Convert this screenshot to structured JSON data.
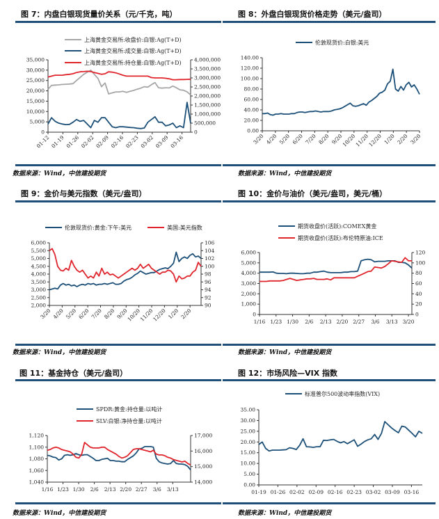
{
  "colors": {
    "blue": "#1b4f78",
    "red": "#e0242c",
    "gray": "#a6a6a6",
    "rule": "#1f4e79"
  },
  "source": "数据来源：Wind，中信建投期货",
  "chart_data": [
    {
      "type": "line",
      "title": "图 7：内盘白银现货量价关系（元/千克，吨）",
      "xticks": [
        "01-12",
        "01-19",
        "01-26",
        "02-02",
        "02-09",
        "02-16",
        "02-23",
        "03-02",
        "03-09",
        "03-16"
      ],
      "ylim": [
        0,
        35000
      ],
      "yticks": [
        0,
        5000,
        10000,
        15000,
        20000,
        25000,
        30000,
        35000
      ],
      "ytick_labels": [
        "0",
        "5,000",
        "10,000",
        "15,000",
        "20,000",
        "25,000",
        "30,000",
        "35,000"
      ],
      "y2lim": [
        0,
        4000000
      ],
      "y2ticks": [
        0,
        500000,
        1000000,
        1500000,
        2000000,
        2500000,
        3000000,
        3500000,
        4000000
      ],
      "y2tick_labels": [
        "0",
        "500,000",
        "1,000,000",
        "1,500,000",
        "2,000,000",
        "2,500,000",
        "3,000,000",
        "3,500,000",
        "4,000,000"
      ],
      "series": [
        {
          "name": "上海黄金交易所:收盘价:白银:Ag(T+D)",
          "color": "#a6a6a6",
          "axis": "left",
          "values": [
            20800,
            22600,
            22800,
            22900,
            23100,
            23200,
            23300,
            23500,
            25000,
            26500,
            28000,
            29000,
            30000,
            28000,
            26000,
            22000,
            23800,
            18500,
            19000,
            19500,
            19500,
            19800,
            19300,
            19800,
            20200,
            20800,
            21300,
            22000,
            21800,
            23000,
            24000,
            21500,
            21300,
            21500,
            21400,
            22300,
            21500,
            20500,
            20300,
            19500,
            18000
          ]
        },
        {
          "name": "上海黄金交易所:成交量:白银:Ag(T+D)",
          "color": "#1b4f78",
          "axis": "right",
          "values": [
            450000,
            800000,
            600000,
            500000,
            450000,
            420000,
            430000,
            550000,
            700000,
            600000,
            650000,
            450000,
            250000,
            650000,
            550000,
            800000,
            800000,
            550000,
            300000,
            250000,
            300000,
            300000,
            280000,
            260000,
            250000,
            220000,
            200000,
            230000,
            550000,
            700000,
            850000,
            550000,
            550000,
            350000,
            400000,
            500000,
            250000,
            350000,
            250000,
            1650000,
            500000
          ]
        },
        {
          "name": "上海黄金交易所:持仓量:白银:Ag(T+D)",
          "color": "#e0242c",
          "axis": "right",
          "values": [
            3050000,
            3100000,
            3150000,
            3150000,
            3150000,
            3180000,
            3200000,
            3230000,
            3300000,
            3340000,
            3350000,
            3370000,
            3350000,
            3300000,
            3250000,
            3200000,
            3230000,
            3340000,
            3320000,
            3280000,
            3220000,
            3150000,
            3100000,
            3100000,
            3100000,
            3100000,
            3100000,
            3100000,
            3100000,
            3020000,
            3000000,
            3000000,
            3000000,
            2980000,
            2950000,
            2900000,
            2900000,
            2910000,
            2910000,
            2920000,
            2930000
          ]
        }
      ]
    },
    {
      "type": "line",
      "title": "图 8：外盘白银现货价格走势（美元/盎司）",
      "xticks": [
        "3/20",
        "4/20",
        "5/20",
        "6/20",
        "7/20",
        "8/20",
        "9/20",
        "10/20",
        "11/20",
        "12/20",
        "1/20",
        "2/20",
        "3/20"
      ],
      "ylim": [
        0,
        140
      ],
      "yticks": [
        0,
        20,
        40,
        60,
        80,
        100,
        120,
        140
      ],
      "ytick_labels": [
        "0.00",
        "20.00",
        "40.00",
        "60.00",
        "80.00",
        "100.00",
        "120.00",
        "140.00"
      ],
      "series": [
        {
          "name": "伦敦现货价:白银:美元",
          "color": "#1b4f78",
          "axis": "left",
          "values": [
            33,
            33,
            34,
            31,
            30,
            32,
            32,
            33,
            32,
            32,
            32,
            33,
            33,
            35,
            36,
            36,
            35,
            36,
            37,
            37,
            38,
            37,
            36,
            37,
            37,
            37,
            38,
            40,
            41,
            42,
            44,
            47,
            50,
            53,
            48,
            47,
            48,
            50,
            52,
            49,
            55,
            58,
            62,
            66,
            72,
            74,
            78,
            90,
            95,
            118,
            80,
            76,
            85,
            78,
            88,
            93,
            84,
            88,
            80,
            70
          ]
        }
      ]
    },
    {
      "type": "line",
      "title": "图 9：金价与美元指数（美元/盎司）",
      "xticks": [
        "3/20",
        "4/20",
        "5/20",
        "6/20",
        "7/20",
        "8/20",
        "9/20",
        "10/20",
        "11/20",
        "12/20",
        "1/20",
        "2/20"
      ],
      "ylim": [
        2000,
        6000
      ],
      "yticks": [
        2000,
        2500,
        3000,
        3500,
        4000,
        4500,
        5000,
        5500,
        6000
      ],
      "ytick_labels": [
        "2,000",
        "2,500",
        "3,000",
        "3,500",
        "4,000",
        "4,500",
        "5,000",
        "5,500",
        "6,000"
      ],
      "y2lim": [
        90,
        106
      ],
      "y2ticks": [
        90,
        92,
        94,
        96,
        98,
        100,
        102,
        104,
        106
      ],
      "y2tick_labels": [
        "90",
        "92",
        "94",
        "96",
        "98",
        "100",
        "102",
        "104",
        "106"
      ],
      "series": [
        {
          "name": "伦敦现货价:黄金:下午:美元",
          "color": "#1b4f78",
          "axis": "left",
          "values": [
            3000,
            3050,
            3100,
            3050,
            3300,
            3400,
            3300,
            3350,
            3250,
            3300,
            3200,
            3300,
            3350,
            3300,
            3400,
            3350,
            3400,
            3300,
            3350,
            3350,
            3400,
            3350,
            3400,
            3450,
            3350,
            3350,
            3400,
            3550,
            3650,
            3700,
            3800,
            3950,
            4050,
            4200,
            4100,
            4000,
            4050,
            4100,
            4100,
            4200,
            4300,
            4350,
            4400,
            4350,
            4500,
            4700,
            5400,
            4800,
            5000,
            5100,
            5000,
            5200,
            5300,
            5100,
            5150,
            5000
          ]
        },
        {
          "name": "美国:美元指数",
          "color": "#e0242c",
          "axis": "right",
          "values": [
            104,
            104.5,
            103,
            100,
            99,
            98.8,
            99.5,
            99,
            101.5,
            100,
            99,
            98.5,
            99,
            98,
            97,
            97.5,
            97,
            98.5,
            97.5,
            99.5,
            98,
            98.5,
            97.8,
            98,
            97.5,
            97,
            97.5,
            98,
            98.5,
            99,
            99.5,
            99,
            99.5,
            100.5,
            99.5,
            100,
            100.5,
            99.5,
            99,
            98.5,
            98,
            98.5,
            98.5,
            99,
            98.8,
            98,
            96,
            97.5,
            96.8,
            97,
            97.5,
            97.5,
            98.5,
            99,
            101,
            100
          ]
        }
      ]
    },
    {
      "type": "line",
      "title": "图 10：金价与油价（美元/盎司，美元/桶）",
      "xticks": [
        "1/16",
        "1/23",
        "1/30",
        "2/6",
        "2/13",
        "2/20",
        "2/27",
        "3/6",
        "3/13",
        "3/20"
      ],
      "ylim": [
        0,
        6000
      ],
      "yticks": [
        0,
        1000,
        2000,
        3000,
        4000,
        5000,
        6000
      ],
      "ytick_labels": [
        "0",
        "1,000",
        "2,000",
        "3,000",
        "4,000",
        "5,000",
        "6,000"
      ],
      "y2lim": [
        0,
        120
      ],
      "y2ticks": [
        0,
        20,
        40,
        60,
        80,
        100,
        120
      ],
      "y2tick_labels": [
        "0",
        "20",
        "40",
        "60",
        "80",
        "100",
        "120"
      ],
      "series": [
        {
          "name": "期货收盘价(活跃):COMEX黄金",
          "color": "#1b4f78",
          "axis": "left",
          "values": [
            4100,
            4100,
            4100,
            4100,
            4120,
            4000,
            3980,
            3980,
            3950,
            4000,
            4000,
            3980,
            3950,
            3950,
            4000,
            4000,
            4100,
            4100,
            4150,
            4200,
            4100,
            4050,
            4050,
            4050,
            4050,
            4100,
            4100,
            4150,
            4150,
            4200,
            5200,
            5300,
            5350,
            5300,
            5100,
            5150,
            5150,
            5150,
            5200,
            5200,
            5200,
            5050,
            5050,
            5000,
            4800,
            4500
          ]
        },
        {
          "name": "期货收盘价(活跃):布伦特原油:ICE",
          "color": "#e0242c",
          "axis": "right",
          "values": [
            64,
            64,
            64,
            65,
            65,
            65,
            65,
            66,
            68,
            70,
            68,
            66,
            67,
            68,
            69,
            69,
            70,
            68,
            68,
            68,
            69,
            67,
            71,
            71,
            71,
            71,
            71,
            71,
            71,
            74,
            77,
            80,
            83,
            84,
            92,
            91,
            90,
            93,
            98,
            104,
            103,
            102,
            101,
            110,
            104,
            104
          ]
        }
      ]
    },
    {
      "type": "line",
      "title": "图 11：基金持仓（美元/盎司）",
      "xticks": [
        "1/16",
        "1/23",
        "1/30",
        "2/6",
        "2/13",
        "2/20",
        "2/27",
        "3/6",
        "3/13"
      ],
      "ylim": [
        1040,
        1120
      ],
      "yticks": [
        1040,
        1060,
        1080,
        1100,
        1120
      ],
      "ytick_labels": [
        "1,040",
        "1,060",
        "1,080",
        "1,100",
        "1,120"
      ],
      "y2lim": [
        14000,
        17000
      ],
      "y2ticks": [
        14000,
        15000,
        16000,
        17000
      ],
      "y2tick_labels": [
        "14,000",
        "15,000",
        "16,000",
        "17,000"
      ],
      "series": [
        {
          "name": "SPDR:黄金:持仓量:以吨计",
          "color": "#1b4f78",
          "axis": "left",
          "values": [
            1086,
            1085,
            1083,
            1082,
            1078,
            1080,
            1086,
            1087,
            1086,
            1087,
            1089,
            1087,
            1086,
            1087,
            1087,
            1084,
            1081,
            1077,
            1077,
            1079,
            1080,
            1081,
            1077,
            1077,
            1076,
            1076,
            1075,
            1075,
            1079,
            1082,
            1085,
            1090,
            1097,
            1098,
            1101,
            1101,
            1101,
            1100,
            1081,
            1075,
            1073,
            1072,
            1071,
            1072,
            1077,
            1072,
            1071,
            1071,
            1070,
            1067,
            1061
          ]
        },
        {
          "name": "SLV:白银:净持仓量:以吨计",
          "color": "#e0242c",
          "axis": "right",
          "values": [
            16050,
            16100,
            16200,
            16250,
            16200,
            16100,
            16050,
            16000,
            15950,
            15800,
            15600,
            15550,
            15800,
            16550,
            16400,
            16250,
            16200,
            16200,
            16200,
            16250,
            16250,
            16100,
            16000,
            15900,
            15800,
            15650,
            15550,
            15600,
            15700,
            15900,
            16100,
            16150,
            16150,
            16100,
            16050,
            16000,
            15950,
            16050,
            15800,
            15750,
            15750,
            15700,
            15600,
            15550,
            15450,
            15400,
            15350,
            15300,
            15350,
            15200,
            15100
          ]
        }
      ]
    },
    {
      "type": "line",
      "title": "图 12：市场风险—VIX 指数",
      "xticks": [
        "01-19",
        "01-26",
        "02-02",
        "02-09",
        "02-16",
        "02-23",
        "03-02",
        "03-09",
        "03-16"
      ],
      "ylim": [
        0,
        35
      ],
      "yticks": [
        0,
        5,
        10,
        15,
        20,
        25,
        30,
        35
      ],
      "ytick_labels": [
        "0.00",
        "5.00",
        "10.00",
        "15.00",
        "20.00",
        "25.00",
        "30.00",
        "35.00"
      ],
      "series": [
        {
          "name": "标准普尔500波动率指数(VIX)",
          "color": "#1b4f78",
          "axis": "left",
          "values": [
            18.8,
            20,
            17,
            15.8,
            16.2,
            16.2,
            16.2,
            16.3,
            16.4,
            17.3,
            17,
            16.5,
            18.5,
            21.5,
            17.8,
            17.7,
            17.5,
            17.8,
            17.8,
            20.8,
            20.7,
            21,
            21.2,
            20.3,
            19.6,
            20.2,
            19.2,
            20.1,
            21,
            18,
            19,
            20.2,
            21,
            21.5,
            23.5,
            21.2,
            24,
            29.5,
            28,
            26.5,
            25.3,
            24.3,
            27.4,
            27,
            25.5,
            24,
            22.4,
            25,
            24
          ]
        }
      ]
    }
  ]
}
